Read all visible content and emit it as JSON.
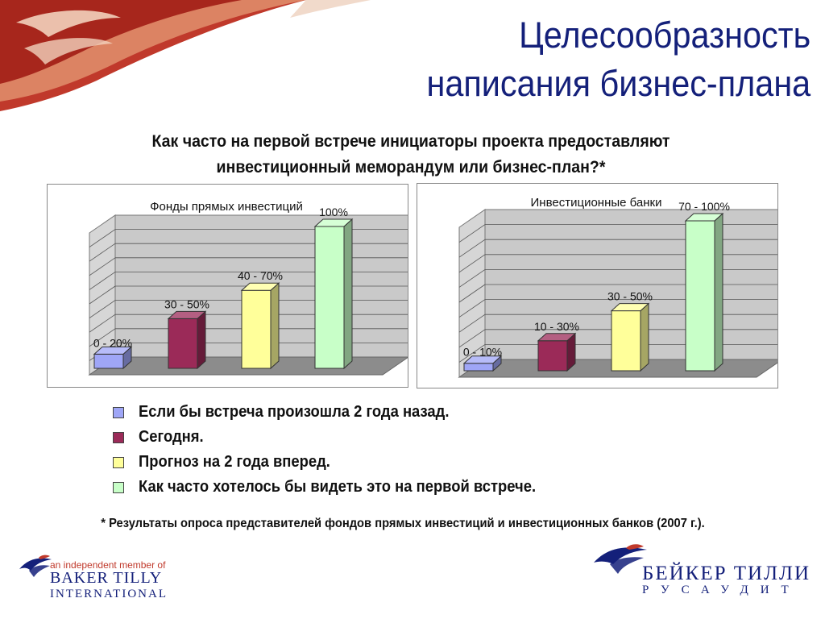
{
  "slide": {
    "title_line1": "Целесообразность",
    "title_line2": "написания бизнес-плана",
    "subtitle_line1": "Как часто на первой встрече инициаторы проекта предоставляют",
    "subtitle_line2": "инвестиционный меморандум или бизнес-план?*",
    "footnote": "* Результаты опроса представителей фондов прямых инвестиций и инвестиционных банков (2007 г.)."
  },
  "legend": [
    {
      "label": "Если бы встреча произошла 2 года назад.",
      "color": "#9fa6f7"
    },
    {
      "label": "Сегодня.",
      "color": "#9b2a58"
    },
    {
      "label": "Прогноз на 2 года вперед.",
      "color": "#ffff9a"
    },
    {
      "label": "Как часто хотелось бы видеть это на первой встрече.",
      "color": "#c8ffc8"
    }
  ],
  "chart_data": [
    {
      "type": "bar",
      "title": "Фонды прямых инвестиций",
      "categories": [
        "Если бы встреча произошла 2 года назад.",
        "Сегодня.",
        "Прогноз на 2 года вперед.",
        "Как часто хотелось бы видеть это на первой встрече."
      ],
      "values": [
        10,
        35,
        55,
        100
      ],
      "data_labels": [
        "0 - 20%",
        "30 - 50%",
        "40 - 70%",
        "100%"
      ],
      "colors": [
        "#9fa6f7",
        "#9b2a58",
        "#ffff9a",
        "#c8ffc8"
      ],
      "ylim": [
        0,
        100
      ],
      "grid": true,
      "three_d": true
    },
    {
      "type": "bar",
      "title": "Инвестиционные банки",
      "categories": [
        "Если бы встреча произошла 2 года назад.",
        "Сегодня.",
        "Прогноз на 2 года вперед.",
        "Как часто хотелось бы видеть это на первой встрече."
      ],
      "values": [
        5,
        20,
        40,
        100
      ],
      "data_labels": [
        "0 - 10%",
        "10 - 30%",
        "30 - 50%",
        "70 - 100%"
      ],
      "colors": [
        "#9fa6f7",
        "#9b2a58",
        "#ffff9a",
        "#c8ffc8"
      ],
      "ylim": [
        0,
        100
      ],
      "grid": true,
      "three_d": true
    }
  ],
  "logos": {
    "left_tag": "an independent member of",
    "left_line1": "BAKER TILLY",
    "left_line2": "INTERNATIONAL",
    "right_line1": "БЕЙКЕР ТИЛЛИ",
    "right_line2": "РУСАУДИТ",
    "brand_color": "#14207a"
  }
}
